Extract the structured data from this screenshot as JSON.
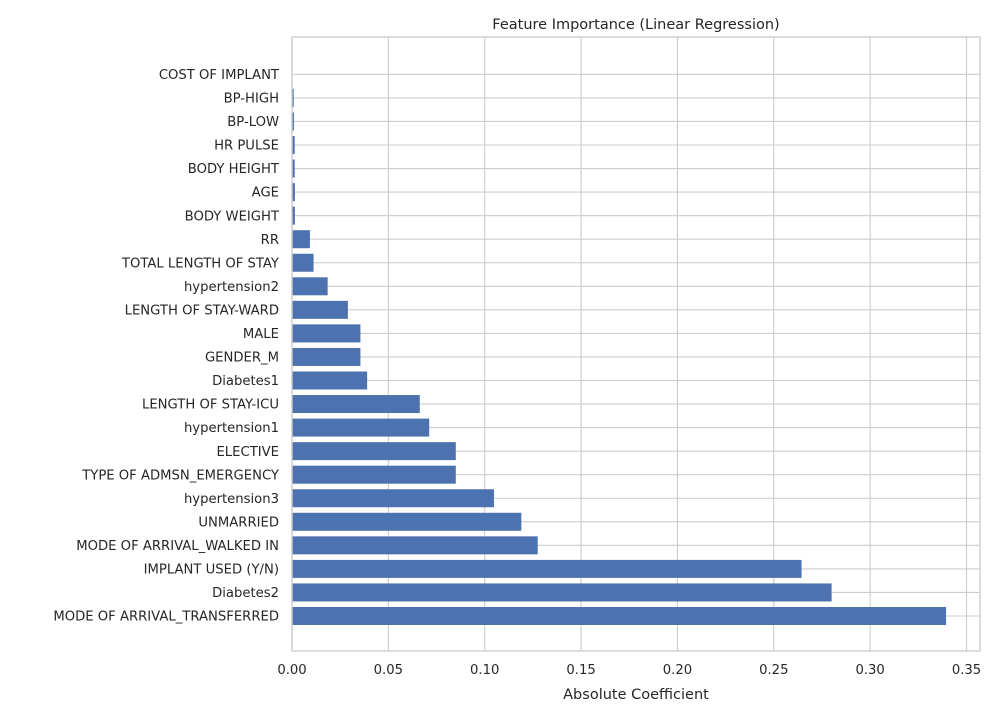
{
  "chart_data": {
    "type": "bar",
    "orientation": "horizontal",
    "title": "Feature Importance (Linear Regression)",
    "xlabel": "Absolute Coefficient",
    "ylabel": "",
    "xlim": [
      0,
      0.357
    ],
    "x_ticks": [
      0.0,
      0.05,
      0.1,
      0.15,
      0.2,
      0.25,
      0.3,
      0.35
    ],
    "x_tick_labels": [
      "0.00",
      "0.05",
      "0.10",
      "0.15",
      "0.20",
      "0.25",
      "0.30",
      "0.35"
    ],
    "grid": true,
    "bar_color": "#4c72b0",
    "categories": [
      "MODE OF ARRIVAL_TRANSFERRED",
      "Diabetes2",
      "IMPLANT USED (Y/N)",
      "MODE OF ARRIVAL_WALKED IN",
      "UNMARRIED",
      "hypertension3",
      "TYPE OF ADMSN_EMERGENCY",
      "ELECTIVE",
      "hypertension1",
      "LENGTH OF STAY-ICU",
      "Diabetes1",
      "GENDER_M",
      "MALE",
      "LENGTH OF STAY-WARD",
      "hypertension2",
      "TOTAL LENGTH OF STAY",
      "RR",
      "BODY WEIGHT",
      "AGE",
      "BODY HEIGHT",
      "HR PULSE",
      "BP-LOW",
      "BP-HIGH",
      "COST OF IMPLANT"
    ],
    "values": [
      0.3394,
      0.28,
      0.2644,
      0.1275,
      0.119,
      0.1048,
      0.085,
      0.085,
      0.0712,
      0.0663,
      0.039,
      0.0355,
      0.0355,
      0.029,
      0.0185,
      0.0112,
      0.0093,
      0.0015,
      0.0015,
      0.0014,
      0.0014,
      0.001,
      0.0009,
      0.0001
    ]
  }
}
